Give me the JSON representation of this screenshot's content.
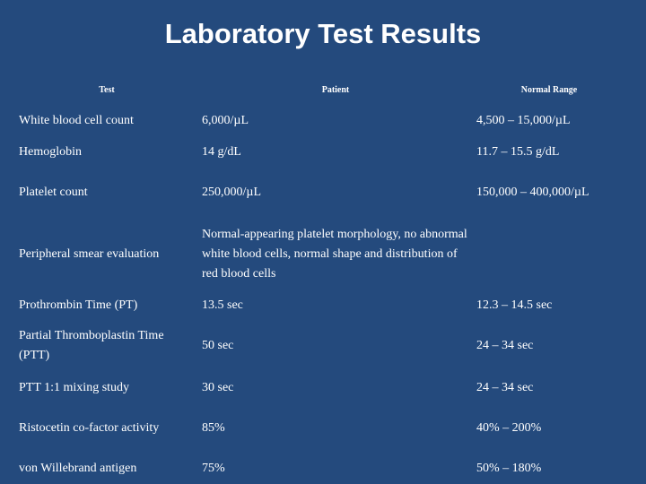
{
  "title": "Laboratory Test Results",
  "table": {
    "headers": [
      "Test",
      "Patient",
      "Normal Range"
    ],
    "rows": [
      [
        "White blood cell count",
        "6,000/µL",
        "4,500 – 15,000/µL"
      ],
      [
        "Hemoglobin",
        "14 g/dL",
        "11.7 – 15.5 g/dL"
      ],
      [
        "Platelet count",
        "250,000/µL",
        "150,000 – 400,000/µL"
      ],
      [
        "Peripheral smear evaluation",
        "Normal-appearing platelet morphology, no abnormal white blood cells, normal shape and distribution of red blood cells",
        ""
      ],
      [
        "Prothrombin Time (PT)",
        "13.5 sec",
        "12.3 – 14.5 sec"
      ],
      [
        "Partial Thromboplastin Time (PTT)",
        "50 sec",
        "24 – 34 sec"
      ],
      [
        "PTT 1:1 mixing study",
        "30 sec",
        "24 – 34 sec"
      ],
      [
        "Ristocetin co-factor activity",
        "85%",
        "40% – 200%"
      ],
      [
        "von Willebrand antigen",
        "75%",
        "50% – 180%"
      ]
    ]
  }
}
